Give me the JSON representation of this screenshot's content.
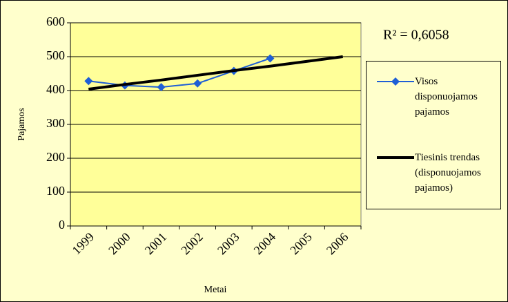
{
  "chart_data": {
    "type": "line",
    "x_label": "Metai",
    "y_label": "Pajamos",
    "annotation": "R² = 0,6058",
    "categories": [
      "1999",
      "2000",
      "2001",
      "2002",
      "2003",
      "2004",
      "2005",
      "2006"
    ],
    "series": [
      {
        "name": "Visos disponuojamos pajamos",
        "color": "#1f5fd6",
        "marker": "diamond",
        "values": [
          428,
          415,
          410,
          421,
          458,
          495,
          null,
          null
        ]
      },
      {
        "name": "Tiesinis trendas (disponuojamos pajamos)",
        "color": "#000000",
        "marker": "none",
        "values": [
          404,
          418,
          431,
          445,
          459,
          472,
          486,
          500
        ]
      }
    ],
    "ylim": [
      0,
      600
    ],
    "yticks": [
      0,
      100,
      200,
      300,
      400,
      500,
      600
    ],
    "grid": true,
    "legend": "right"
  }
}
